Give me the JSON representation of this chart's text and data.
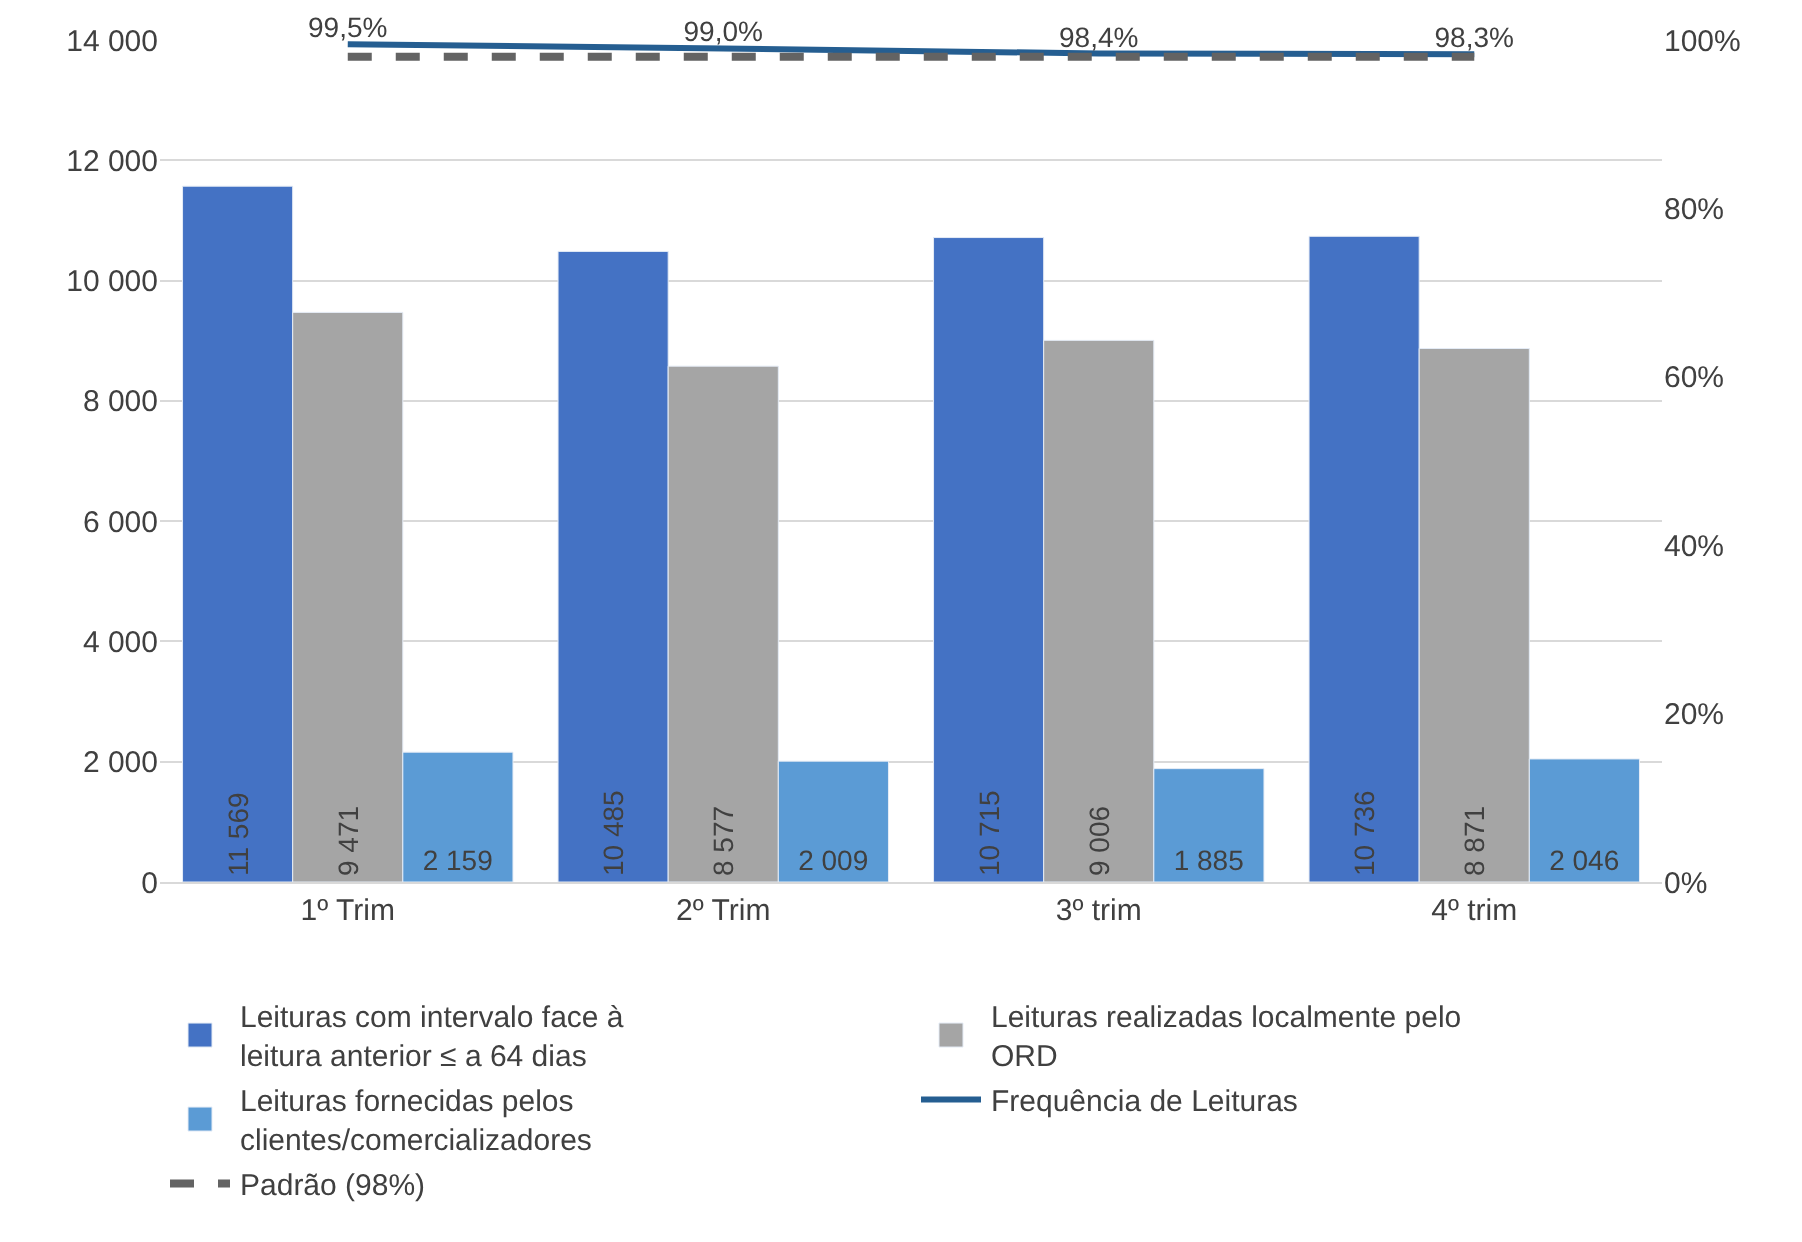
{
  "chart_data": {
    "type": "bar",
    "categories": [
      "1º Trim",
      "2º Trim",
      "3º trim",
      "4º trim"
    ],
    "series": [
      {
        "name": "Leituras com intervalo face à leitura anterior ≤ a 64 dias",
        "color": "#4472c4",
        "values": [
          11569,
          10485,
          10715,
          10736
        ],
        "value_labels": [
          "11 569",
          "10 485",
          "10 715",
          "10 736"
        ]
      },
      {
        "name": "Leituras realizadas localmente pelo ORD",
        "color": "#a5a5a5",
        "values": [
          9471,
          8577,
          9006,
          8871
        ],
        "value_labels": [
          "9 471",
          "8 577",
          "9 006",
          "8 871"
        ]
      },
      {
        "name": "Leituras fornecidas pelos clientes/comercializadores",
        "color": "#5b9bd5",
        "values": [
          2159,
          2009,
          1885,
          2046
        ],
        "value_labels": [
          "2 159",
          "2 009",
          "1 885",
          "2 046"
        ]
      },
      {
        "name": "Frequência de Leituras",
        "type": "line",
        "axis": "y2",
        "color": "#255e91",
        "values": [
          99.5,
          99.0,
          98.4,
          98.3
        ],
        "value_labels": [
          "99,5%",
          "99,0%",
          "98,4%",
          "98,3%"
        ]
      },
      {
        "name": "Padrão (98%)",
        "type": "line",
        "axis": "y2",
        "color": "#636363",
        "line_style": "dashed",
        "values": [
          98,
          98,
          98,
          98
        ]
      }
    ],
    "ylim": [
      0,
      14000
    ],
    "yticks": [
      0,
      {
        "value": 2000,
        "label": "2 000"
      },
      {
        "value": 4000,
        "label": "4 000"
      },
      {
        "value": 6000,
        "label": "6 000"
      },
      {
        "value": 8000,
        "label": "8 000"
      },
      {
        "value": 10000,
        "label": "10 000"
      },
      {
        "value": 12000,
        "label": "12 000"
      },
      {
        "value": 14000,
        "label": "14 000"
      }
    ],
    "y2lim": [
      0,
      100
    ],
    "y2ticks": [
      {
        "value": 0,
        "label": "0%"
      },
      {
        "value": 20,
        "label": "20%"
      },
      {
        "value": 40,
        "label": "40%"
      },
      {
        "value": 60,
        "label": "60%"
      },
      {
        "value": 80,
        "label": "80%"
      },
      {
        "value": 100,
        "label": "100%"
      }
    ],
    "grid": "y",
    "legend": "bottom",
    "marker": "none"
  }
}
